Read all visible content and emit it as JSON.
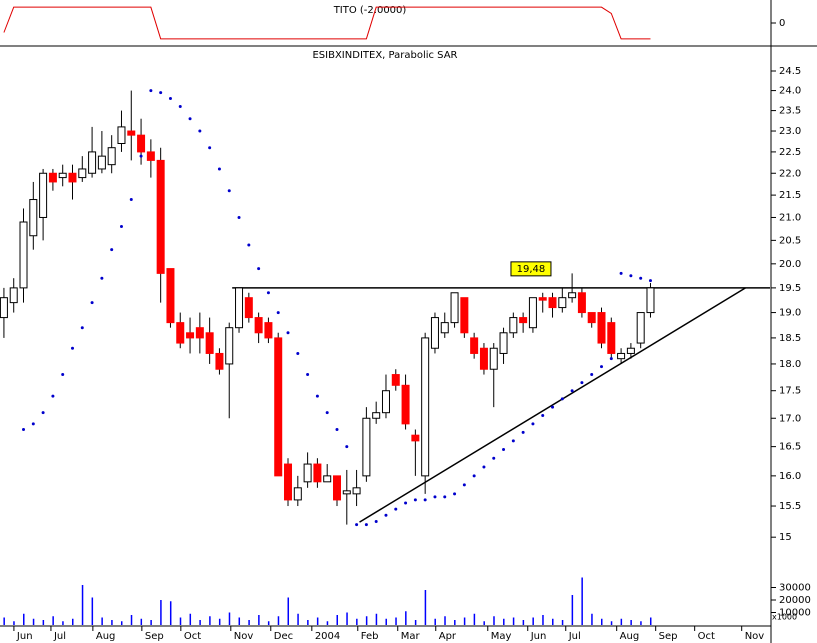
{
  "chart_data": [
    {
      "type": "line",
      "title": "TITO (-2.0000)",
      "color": "#e00000",
      "ylim": [
        -1.2,
        1.2
      ],
      "yticks": [
        0
      ],
      "values": [
        -0.6,
        1,
        1,
        1,
        1,
        1,
        1,
        1,
        1,
        1,
        1,
        1,
        1,
        1,
        1,
        1,
        -1,
        -1,
        -1,
        -1,
        -1,
        -1,
        -1,
        -1,
        -1,
        -1,
        -1,
        -1,
        -1,
        -1,
        -1,
        -1,
        -1,
        -1,
        -1,
        -1,
        -1,
        -1,
        1,
        1,
        1,
        1,
        1,
        1,
        1,
        1,
        1,
        1,
        1,
        1,
        1,
        1,
        1,
        1,
        1,
        1,
        1,
        1,
        1,
        1,
        1,
        1,
        0.6,
        -1,
        -1,
        -1,
        -1
      ]
    },
    {
      "type": "candlestick",
      "title": "ESIBXINDITEX, Parabolic SAR",
      "log_scale": true,
      "up_color": "#ffffff",
      "down_color": "#ff0000",
      "grid": false,
      "ylim": [
        14.43,
        25.1
      ],
      "yticks": [
        15.0,
        {
          "value": 15.5,
          "label": "15.5"
        },
        {
          "value": 16,
          "label": "16.0"
        },
        {
          "value": 16.5,
          "label": "16.5"
        },
        {
          "value": 17,
          "label": "17.0"
        },
        {
          "value": 17.5,
          "label": "17.5"
        },
        {
          "value": 18,
          "label": "18.0"
        },
        {
          "value": 18.5,
          "label": "18.5"
        },
        {
          "value": 19,
          "label": "19.0"
        },
        {
          "value": 19.5,
          "label": "19.5"
        },
        {
          "value": 20,
          "label": "20.0"
        },
        {
          "value": 20.5,
          "label": "20.5"
        },
        {
          "value": 21,
          "label": "21.0"
        },
        {
          "value": 21.5,
          "label": "21.5"
        },
        {
          "value": 22,
          "label": "22.0"
        },
        {
          "value": 22.5,
          "label": "22.5"
        },
        {
          "value": 23,
          "label": "23.0"
        },
        {
          "value": 23.5,
          "label": "23.5"
        },
        {
          "value": 24,
          "label": "24.0"
        },
        {
          "value": 24.5,
          "label": "24.5"
        }
      ],
      "xlim": [
        -0.4,
        78.2
      ],
      "xticks": [
        {
          "value": 1.02,
          "label": "Jun"
        },
        {
          "value": 4.8,
          "label": "Jul"
        },
        {
          "value": 9.08,
          "label": "Aug"
        },
        {
          "value": 14.08,
          "label": "Sep"
        },
        {
          "value": 18.06,
          "label": "Oct"
        },
        {
          "value": 23.16,
          "label": "Nov"
        },
        {
          "value": 27.24,
          "label": "Dec"
        },
        {
          "value": 31.43,
          "label": "2004"
        },
        {
          "value": 36.12,
          "label": "Feb"
        },
        {
          "value": 40.2,
          "label": "Mar"
        },
        {
          "value": 44.08,
          "label": "Apr"
        },
        {
          "value": 49.39,
          "label": "May"
        },
        {
          "value": 53.47,
          "label": "Jun"
        },
        {
          "value": 57.35,
          "label": "Jul"
        },
        {
          "value": 62.55,
          "label": "Aug"
        },
        {
          "value": 66.53,
          "label": "Sep"
        },
        {
          "value": 70.51,
          "label": "Oct"
        },
        {
          "value": 75.31,
          "label": "Nov"
        }
      ],
      "open": [
        18.9,
        19.2,
        19.5,
        20.6,
        21.0,
        22.0,
        21.9,
        22.0,
        21.9,
        22.0,
        22.1,
        22.2,
        22.7,
        23.0,
        22.9,
        22.5,
        22.3,
        19.9,
        18.8,
        18.6,
        18.7,
        18.6,
        18.2,
        18.0,
        18.7,
        19.3,
        18.9,
        18.8,
        18.5,
        16.2,
        15.6,
        15.9,
        16.2,
        15.9,
        16.0,
        15.7,
        15.7,
        16.0,
        17.0,
        17.1,
        17.8,
        17.6,
        16.7,
        16.0,
        18.3,
        18.6,
        18.8,
        19.3,
        18.5,
        18.3,
        17.9,
        18.2,
        18.6,
        18.9,
        18.7,
        19.3,
        19.3,
        19.1,
        19.3,
        19.4,
        19.0,
        19.0,
        18.8,
        18.1,
        18.2,
        18.4,
        19.0
      ],
      "high": [
        19.5,
        19.7,
        21.2,
        21.8,
        22.1,
        22.1,
        22.2,
        22.2,
        22.4,
        23.1,
        23.0,
        22.9,
        23.5,
        24.0,
        23.3,
        22.8,
        22.6,
        19.9,
        19.0,
        18.9,
        19.0,
        18.9,
        18.3,
        18.8,
        19.5,
        19.4,
        19.0,
        18.9,
        18.6,
        16.3,
        16.0,
        16.4,
        16.3,
        16.2,
        16.0,
        16.1,
        16.1,
        17.2,
        17.3,
        17.8,
        17.9,
        17.8,
        16.8,
        18.6,
        19.0,
        19.0,
        19.4,
        19.3,
        18.6,
        18.4,
        18.4,
        18.7,
        19.0,
        19.0,
        19.3,
        19.4,
        19.4,
        19.5,
        19.8,
        19.5,
        19.0,
        19.1,
        18.9,
        18.3,
        18.4,
        19.0,
        19.6
      ],
      "low": [
        18.5,
        19.0,
        19.2,
        20.3,
        20.5,
        21.6,
        21.7,
        21.4,
        21.8,
        21.9,
        22.0,
        22.0,
        22.5,
        22.3,
        22.2,
        21.9,
        19.2,
        18.7,
        18.3,
        18.2,
        18.2,
        18.0,
        17.8,
        17.0,
        18.6,
        18.8,
        18.4,
        18.4,
        16.0,
        15.5,
        15.5,
        15.8,
        15.8,
        15.9,
        15.5,
        15.2,
        15.5,
        15.9,
        16.9,
        17.0,
        17.5,
        16.8,
        16.0,
        15.7,
        18.2,
        18.5,
        18.7,
        18.5,
        18.1,
        17.8,
        17.2,
        18.0,
        18.5,
        18.6,
        18.6,
        19.0,
        18.9,
        19.0,
        19.2,
        18.9,
        18.7,
        18.3,
        18.1,
        18.0,
        18.1,
        18.3,
        18.9
      ],
      "close": [
        19.3,
        19.5,
        20.9,
        21.4,
        22.0,
        21.8,
        22.0,
        21.8,
        22.1,
        22.5,
        22.4,
        22.6,
        23.1,
        22.9,
        22.5,
        22.3,
        19.8,
        18.8,
        18.4,
        18.5,
        18.5,
        18.2,
        17.9,
        18.7,
        19.5,
        18.9,
        18.6,
        18.5,
        16.0,
        15.6,
        15.8,
        16.2,
        15.9,
        16.0,
        15.6,
        15.75,
        15.8,
        17.0,
        17.1,
        17.5,
        17.6,
        16.9,
        16.6,
        18.5,
        18.9,
        18.8,
        19.4,
        18.6,
        18.2,
        17.9,
        18.3,
        18.6,
        18.9,
        18.8,
        19.3,
        19.25,
        19.1,
        19.3,
        19.4,
        19.0,
        18.8,
        18.4,
        18.2,
        18.2,
        18.3,
        19.0,
        19.5
      ],
      "sar": {
        "color": "#0000cc",
        "values": [
          null,
          null,
          16.8,
          16.9,
          17.1,
          17.4,
          17.8,
          18.3,
          18.7,
          19.2,
          19.7,
          20.3,
          20.8,
          21.4,
          22.4,
          24.0,
          23.95,
          23.8,
          23.6,
          23.3,
          23.0,
          22.6,
          22.1,
          21.6,
          21.0,
          20.4,
          19.9,
          19.4,
          19.0,
          18.6,
          18.2,
          17.8,
          17.4,
          17.1,
          16.8,
          16.5,
          15.2,
          15.2,
          15.25,
          15.35,
          15.45,
          15.55,
          15.6,
          15.6,
          15.65,
          15.65,
          15.7,
          15.85,
          16.0,
          16.15,
          16.3,
          16.45,
          16.6,
          16.75,
          16.9,
          17.05,
          17.2,
          17.35,
          17.5,
          17.65,
          17.8,
          17.95,
          18.1,
          19.8,
          19.75,
          19.7,
          19.65
        ]
      },
      "lines": [
        {
          "x": [
            23.3,
            78.2
          ],
          "y": [
            19.5,
            19.5
          ]
        },
        {
          "x": [
            36.3,
            75.7
          ],
          "y": [
            15.24,
            19.5
          ]
        }
      ],
      "annotation": {
        "text": "19,48",
        "value": 19.48,
        "x": 53.8,
        "color": "#ffff00"
      }
    },
    {
      "type": "bar",
      "color": "#0000ff",
      "unit_label": "x1000",
      "ylim": [
        0,
        40000
      ],
      "yticks": [
        10000,
        20000,
        30000
      ],
      "values": [
        6000,
        3000,
        9000,
        5000,
        4000,
        7000,
        3000,
        5000,
        32000,
        22000,
        6000,
        4000,
        3000,
        8000,
        5000,
        4000,
        20000,
        19000,
        6000,
        9000,
        4000,
        7000,
        5000,
        10000,
        6000,
        4000,
        8000,
        3000,
        7000,
        22000,
        9000,
        4000,
        6000,
        3000,
        8000,
        10000,
        5000,
        7000,
        9000,
        5000,
        6000,
        11000,
        4000,
        28000,
        5000,
        7000,
        4000,
        6000,
        9000,
        3000,
        7000,
        5000,
        6000,
        4000,
        6000,
        8000,
        5000,
        4000,
        24000,
        38000,
        9000,
        5000,
        3000,
        5000,
        4000,
        3000,
        6000
      ]
    }
  ]
}
